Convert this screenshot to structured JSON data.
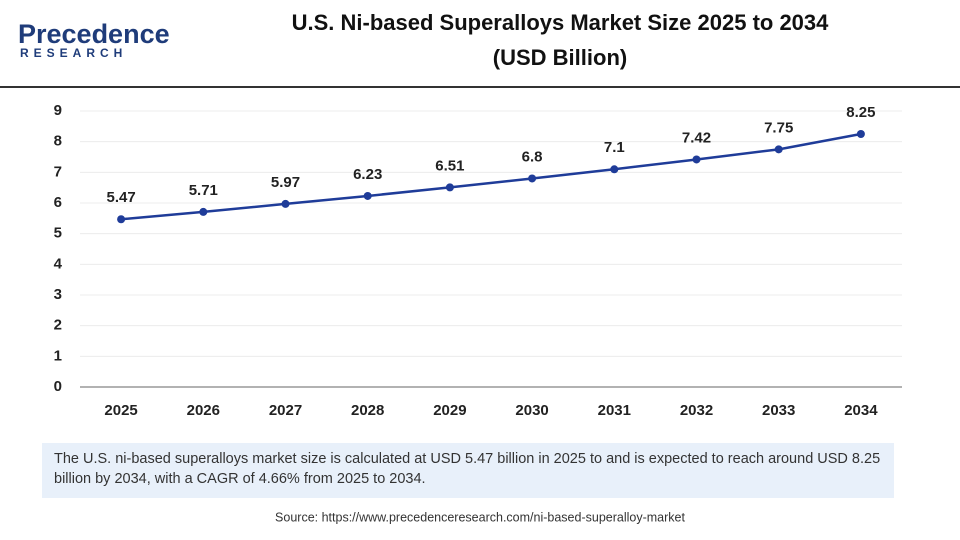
{
  "logo": {
    "name": "Precedence",
    "tagline": "RESEARCH"
  },
  "chart_data": {
    "type": "line",
    "title": "U.S. Ni-based Superalloys Market Size 2025 to 2034",
    "subtitle": "(USD Billion)",
    "categories": [
      "2025",
      "2026",
      "2027",
      "2028",
      "2029",
      "2030",
      "2031",
      "2032",
      "2033",
      "2034"
    ],
    "values": [
      5.47,
      5.71,
      5.97,
      6.23,
      6.51,
      6.8,
      7.1,
      7.42,
      7.75,
      8.25
    ],
    "color": "#1f3c99",
    "ylim": [
      0,
      9
    ],
    "yticks": [
      0,
      1,
      2,
      3,
      4,
      5,
      6,
      7,
      8,
      9
    ],
    "grid": true
  },
  "description": "The U.S. ni-based superalloys market size is calculated at USD 5.47 billion in 2025 to and is expected to reach around USD 8.25 billion by 2034, with a CAGR of 4.66% from 2025 to 2034.",
  "source": "Source: https://www.precedenceresearch.com/ni-based-superalloy-market"
}
